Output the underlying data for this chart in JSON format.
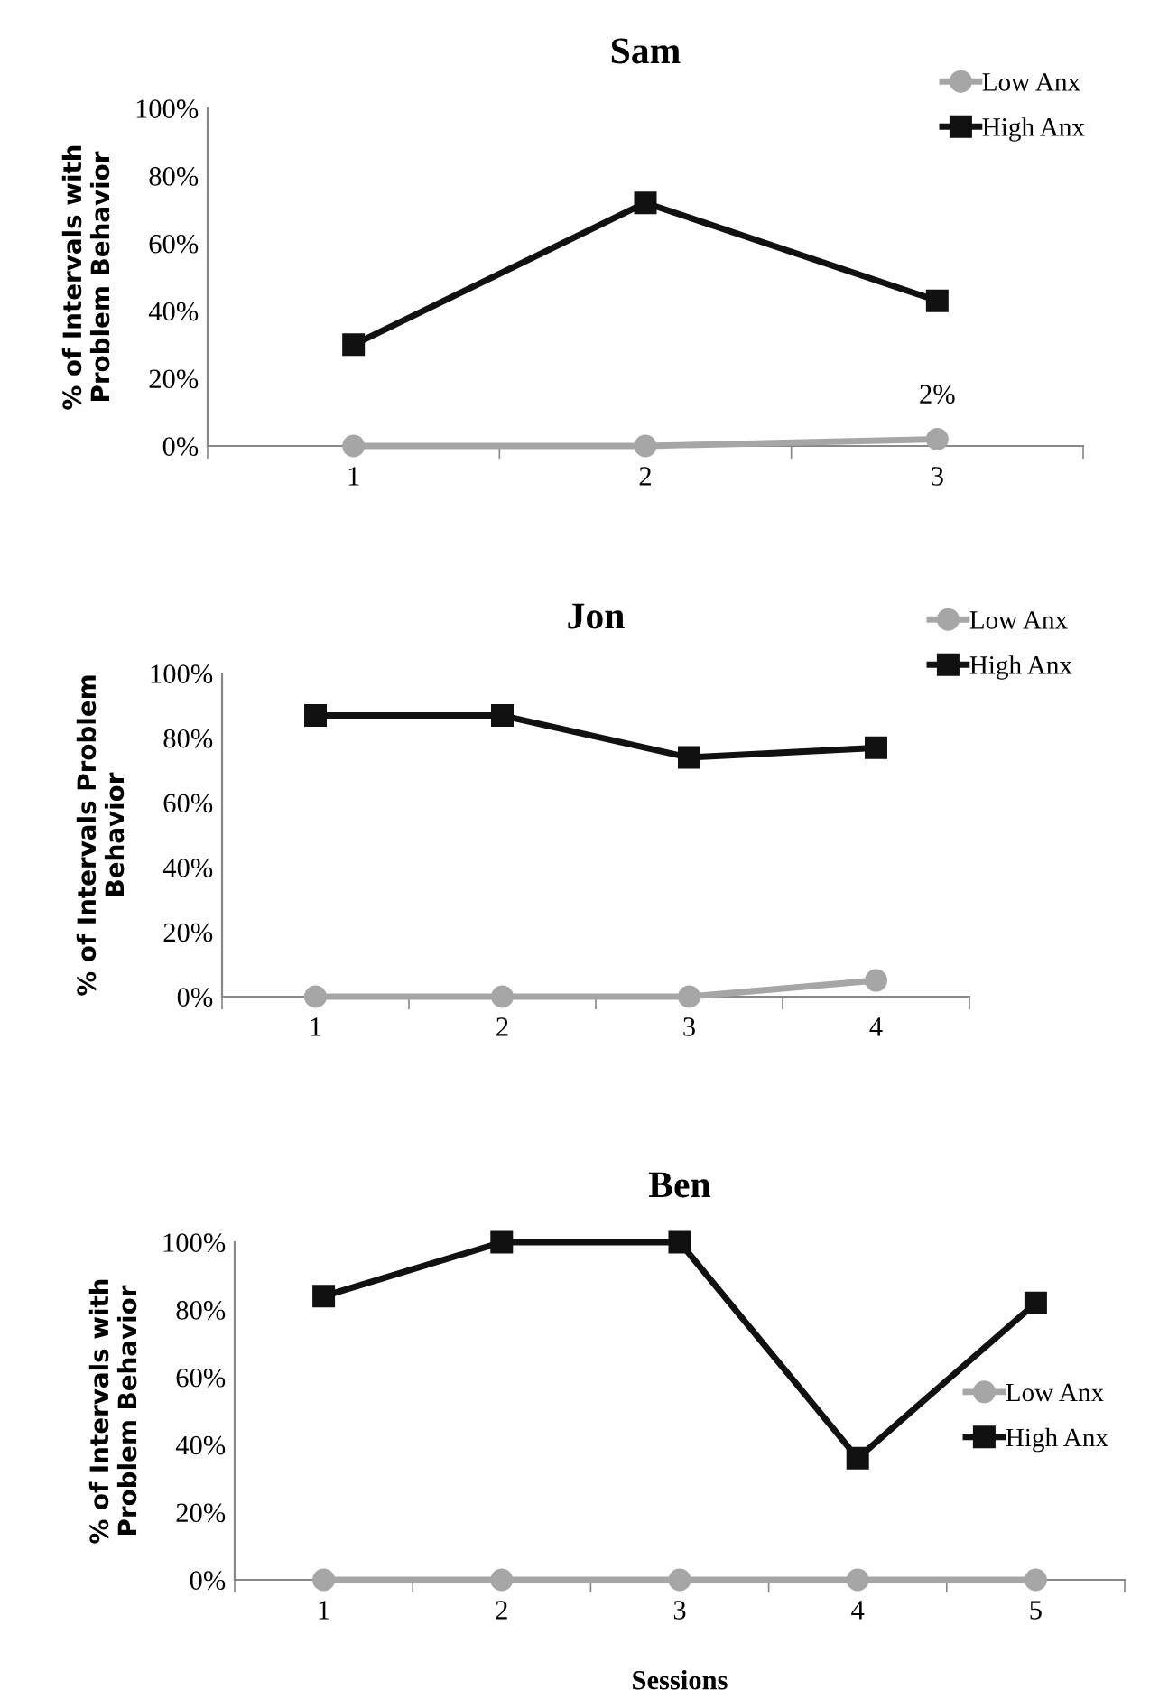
{
  "chart_data": [
    {
      "type": "line",
      "title": "Sam",
      "ylabel": "% of Intervals with\nProblem Behavior",
      "categories": [
        "1",
        "2",
        "3"
      ],
      "series": [
        {
          "name": "Low Anx",
          "color": "#a6a6a6",
          "marker": "circle",
          "values": [
            0,
            0,
            2
          ]
        },
        {
          "name": "High Anx",
          "color": "#111111",
          "marker": "square",
          "values": [
            30,
            72,
            43
          ]
        }
      ],
      "ylim": [
        0,
        100
      ],
      "yticks": [
        {
          "value": 0,
          "label": "0%"
        },
        {
          "value": 20,
          "label": "20%"
        },
        {
          "value": 40,
          "label": "40%"
        },
        {
          "value": 60,
          "label": "60%"
        },
        {
          "value": 80,
          "label": "80%"
        },
        {
          "value": 100,
          "label": "100%"
        }
      ],
      "annotations": [
        {
          "text": "2%",
          "x": "3",
          "y": 2
        }
      ],
      "legend": "top right",
      "grid": false
    },
    {
      "type": "line",
      "title": "Jon",
      "ylabel": "% of Intervals Problem\nBehavior",
      "categories": [
        "1",
        "2",
        "3",
        "4"
      ],
      "series": [
        {
          "name": "Low Anx",
          "color": "#a6a6a6",
          "marker": "circle",
          "values": [
            0,
            0,
            0,
            5
          ]
        },
        {
          "name": "High Anx",
          "color": "#111111",
          "marker": "square",
          "values": [
            87,
            87,
            74,
            77
          ]
        }
      ],
      "ylim": [
        0,
        100
      ],
      "yticks": [
        {
          "value": 0,
          "label": "0%"
        },
        {
          "value": 20,
          "label": "20%"
        },
        {
          "value": 40,
          "label": "40%"
        },
        {
          "value": 60,
          "label": "60%"
        },
        {
          "value": 80,
          "label": "80%"
        },
        {
          "value": 100,
          "label": "100%"
        }
      ],
      "legend": "top right",
      "grid": false
    },
    {
      "type": "line",
      "title": "Ben",
      "xlabel": "Sessions",
      "ylabel": "% of Intervals with\nProblem Behavior",
      "categories": [
        "1",
        "2",
        "3",
        "4",
        "5"
      ],
      "series": [
        {
          "name": "Low Anx",
          "color": "#a6a6a6",
          "marker": "circle",
          "values": [
            0,
            0,
            0,
            0,
            0
          ]
        },
        {
          "name": "High Anx",
          "color": "#111111",
          "marker": "square",
          "values": [
            84,
            100,
            100,
            36,
            82
          ]
        }
      ],
      "ylim": [
        0,
        100
      ],
      "yticks": [
        {
          "value": 0,
          "label": "0%"
        },
        {
          "value": 20,
          "label": "20%"
        },
        {
          "value": 40,
          "label": "40%"
        },
        {
          "value": 60,
          "label": "60%"
        },
        {
          "value": 80,
          "label": "80%"
        },
        {
          "value": 100,
          "label": "100%"
        }
      ],
      "legend": "right",
      "grid": false
    }
  ]
}
